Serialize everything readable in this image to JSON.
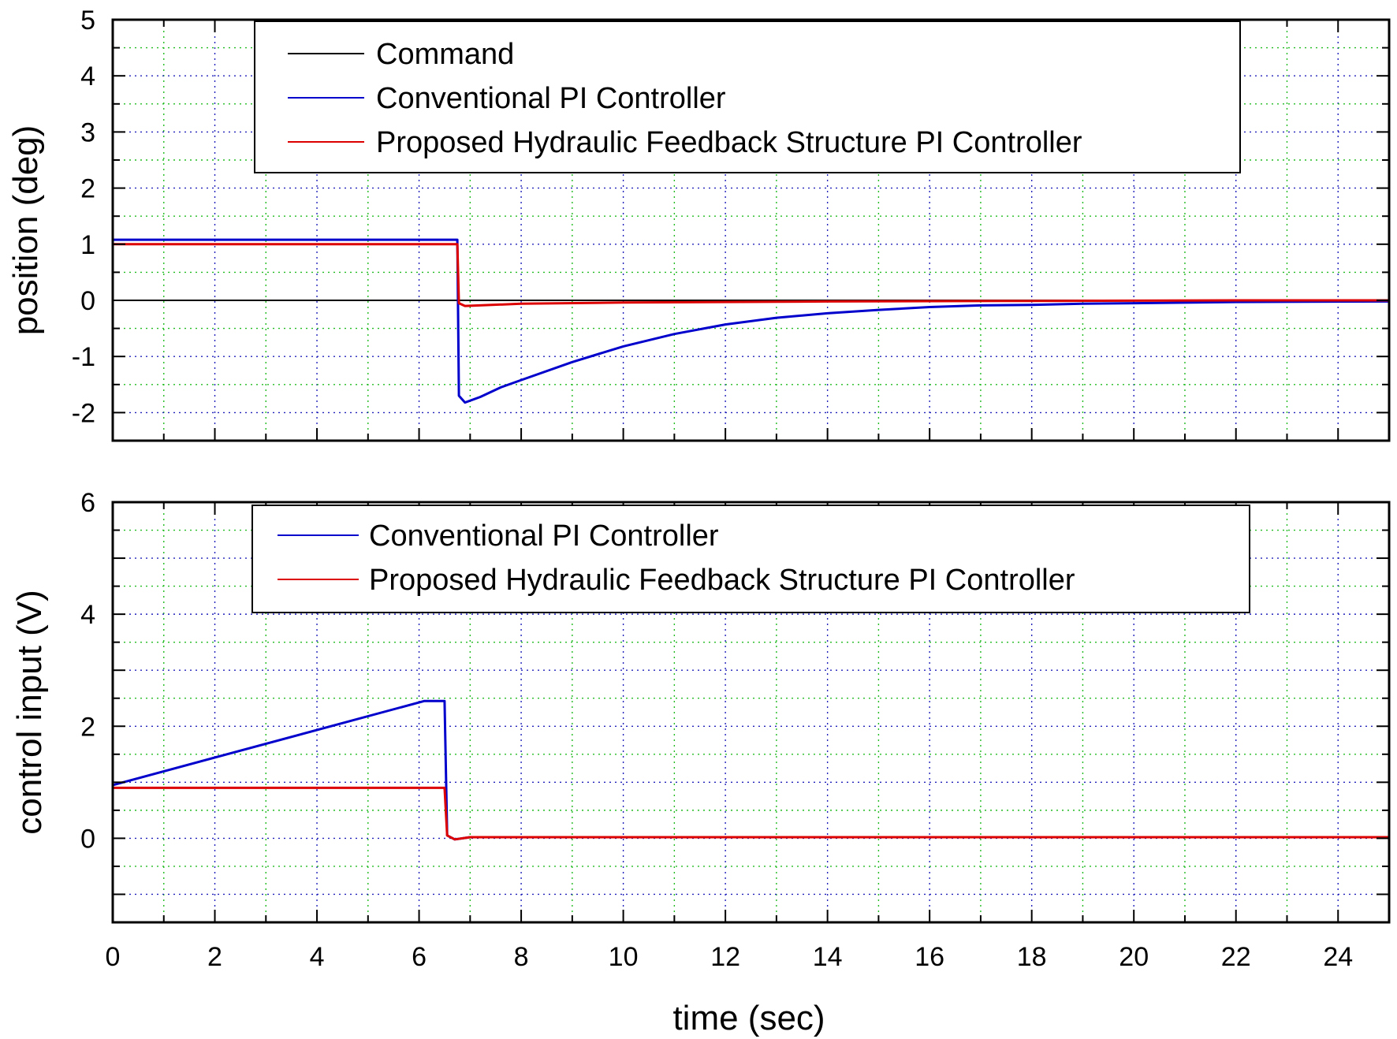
{
  "chart_data": [
    {
      "type": "line",
      "ylabel": "position (deg)",
      "xlabel": "",
      "xlim": [
        0,
        25
      ],
      "ylim": [
        -2.5,
        5
      ],
      "xticks": [
        0,
        2,
        4,
        6,
        8,
        10,
        12,
        14,
        16,
        18,
        20,
        22,
        24
      ],
      "yticks": [
        -2,
        -1,
        0,
        1,
        2,
        3,
        4,
        5
      ],
      "ytick_labels": [
        "-2",
        "-1",
        "0",
        "1",
        "2",
        "3",
        "4",
        "5"
      ],
      "grid": true,
      "legend_position": "top",
      "series": [
        {
          "name": "Command",
          "color": "#000000",
          "x": [
            0,
            25
          ],
          "y": [
            0,
            0
          ]
        },
        {
          "name": "Conventional  PI Controller",
          "color": "#0000cc",
          "x": [
            0,
            6.75,
            6.78,
            6.9,
            7.2,
            7.6,
            8,
            9,
            10,
            11,
            12,
            13,
            14,
            15,
            16,
            17,
            18,
            19,
            20,
            22,
            25
          ],
          "y": [
            1.08,
            1.08,
            -1.7,
            -1.82,
            -1.72,
            -1.55,
            -1.42,
            -1.1,
            -0.82,
            -0.6,
            -0.43,
            -0.31,
            -0.23,
            -0.17,
            -0.12,
            -0.09,
            -0.08,
            -0.06,
            -0.05,
            -0.03,
            -0.02
          ]
        },
        {
          "name": "Proposed Hydraulic Feedback Structure PI Controller",
          "color": "#dd0000",
          "x": [
            0,
            6.75,
            6.78,
            6.9,
            8,
            10,
            14,
            18,
            22,
            25
          ],
          "y": [
            1.0,
            1.0,
            -0.05,
            -0.1,
            -0.06,
            -0.04,
            -0.02,
            -0.01,
            0.0,
            0.0
          ]
        }
      ]
    },
    {
      "type": "line",
      "ylabel": "control input (V)",
      "xlabel": "time (sec)",
      "xlim": [
        0,
        25
      ],
      "ylim": [
        -1.5,
        6
      ],
      "xticks": [
        0,
        2,
        4,
        6,
        8,
        10,
        12,
        14,
        16,
        18,
        20,
        22,
        24
      ],
      "xtick_labels": [
        "0",
        "2",
        "4",
        "6",
        "8",
        "10",
        "12",
        "14",
        "16",
        "18",
        "20",
        "22",
        "24"
      ],
      "yticks": [
        0,
        2,
        4,
        6
      ],
      "ytick_labels": [
        "0",
        "2",
        "4",
        "6"
      ],
      "grid": true,
      "legend_position": "top",
      "series": [
        {
          "name": "Conventional  PI Controller",
          "color": "#0000cc",
          "x": [
            0,
            6.1,
            6.5,
            6.55,
            6.7,
            7.0,
            25
          ],
          "y": [
            0.95,
            2.45,
            2.45,
            0.05,
            -0.02,
            0.02,
            0.02
          ]
        },
        {
          "name": "Proposed Hydraulic Feedback Structure PI Controller",
          "color": "#dd0000",
          "x": [
            0,
            6.5,
            6.55,
            6.7,
            7.0,
            25
          ],
          "y": [
            0.9,
            0.9,
            0.05,
            -0.02,
            0.02,
            0.02
          ]
        }
      ]
    }
  ]
}
